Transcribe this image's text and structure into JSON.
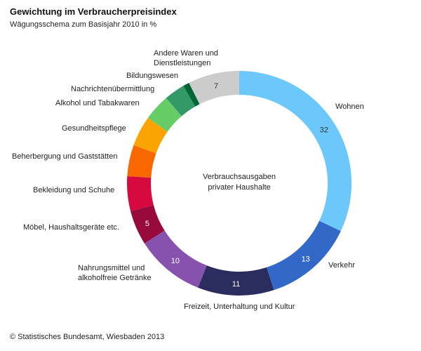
{
  "title": "Gewichtung im Verbraucherpreisindex",
  "subtitle": "Wägungsschema zum Basisjahr 2010 in %",
  "source": "© Statistisches Bundesamt, Wiesbaden 2013",
  "chart_data": {
    "type": "pie",
    "center_label": [
      "Verbrauchsausgaben",
      "privater Haushalte"
    ],
    "slices": [
      {
        "label": [
          "Wohnen"
        ],
        "value": 32,
        "value_label": "32",
        "color": "#6cc8fb",
        "value_color": "#333333"
      },
      {
        "label": [
          "Verkehr"
        ],
        "value": 13,
        "value_label": "13",
        "color": "#3269c9",
        "value_color": "#ffffff"
      },
      {
        "label": [
          "Freizeit, Unterhaltung und Kultur"
        ],
        "value": 11,
        "value_label": "11",
        "color": "#2c2d5f",
        "value_color": "#ffffff"
      },
      {
        "label": [
          "Nahrungsmittel und",
          "alkoholfreie Getränke"
        ],
        "value": 10,
        "value_label": "10",
        "color": "#8652ad",
        "value_color": "#ffffff"
      },
      {
        "label": [
          "Möbel, Haushaltsgeräte etc."
        ],
        "value": 5,
        "value_label": "5",
        "color": "#990a3c",
        "value_color": "#ffffff"
      },
      {
        "label": [
          "Bekleidung und Schuhe"
        ],
        "value": 5,
        "value_label": "",
        "color": "#d70a3f",
        "value_color": "#ffffff"
      },
      {
        "label": [
          "Beherbergung und Gaststätten"
        ],
        "value": 4.5,
        "value_label": "",
        "color": "#f96800",
        "value_color": "#ffffff"
      },
      {
        "label": [
          "Gesundheitspflege"
        ],
        "value": 4.4,
        "value_label": "",
        "color": "#fba400",
        "value_color": "#ffffff"
      },
      {
        "label": [
          "Alkohol und Tabakwaren"
        ],
        "value": 3.8,
        "value_label": "",
        "color": "#66cc66",
        "value_color": "#ffffff"
      },
      {
        "label": [
          "Nachrichtenübermittlung"
        ],
        "value": 3,
        "value_label": "",
        "color": "#339966",
        "value_color": "#ffffff"
      },
      {
        "label": [
          "Bildungswesen"
        ],
        "value": 0.9,
        "value_label": "",
        "color": "#006633",
        "value_color": "#ffffff"
      },
      {
        "label": [
          "Andere Waren und",
          "Dienstleistungen"
        ],
        "value": 7.4,
        "value_label": "7",
        "color": "#cccccc",
        "value_color": "#333333"
      }
    ]
  }
}
